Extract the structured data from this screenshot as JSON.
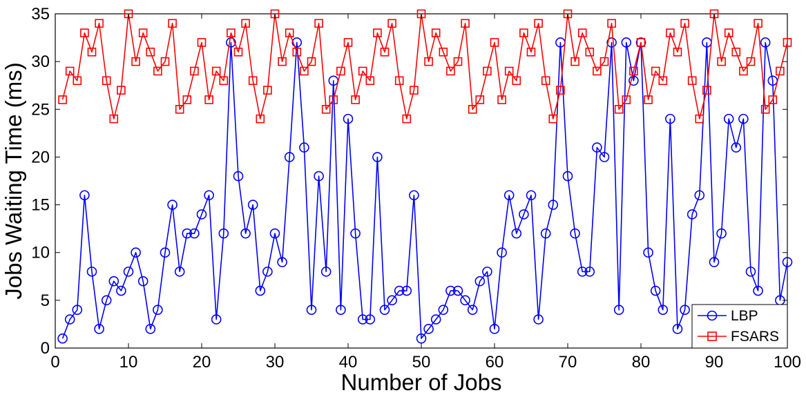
{
  "chart_data": {
    "type": "line",
    "xlabel": "Number of Jobs",
    "ylabel": "Jobs Waiting Time (ms)",
    "xlim": [
      0,
      100
    ],
    "ylim": [
      0,
      35
    ],
    "xticks": [
      0,
      10,
      20,
      30,
      40,
      50,
      60,
      70,
      80,
      90,
      100
    ],
    "yticks": [
      0,
      5,
      10,
      15,
      20,
      25,
      30,
      35
    ],
    "grid": false,
    "legend_position": "bottom-right",
    "x": [
      1,
      2,
      3,
      4,
      5,
      6,
      7,
      8,
      9,
      10,
      11,
      12,
      13,
      14,
      15,
      16,
      17,
      18,
      19,
      20,
      21,
      22,
      23,
      24,
      25,
      26,
      27,
      28,
      29,
      30,
      31,
      32,
      33,
      34,
      35,
      36,
      37,
      38,
      39,
      40,
      41,
      42,
      43,
      44,
      45,
      46,
      47,
      48,
      49,
      50,
      51,
      52,
      53,
      54,
      55,
      56,
      57,
      58,
      59,
      60,
      61,
      62,
      63,
      64,
      65,
      66,
      67,
      68,
      69,
      70,
      71,
      72,
      73,
      74,
      75,
      76,
      77,
      78,
      79,
      80,
      81,
      82,
      83,
      84,
      85,
      86,
      87,
      88,
      89,
      90,
      91,
      92,
      93,
      94,
      95,
      96,
      97,
      98,
      99,
      100
    ],
    "series": [
      {
        "name": "LBP",
        "color": "#0000ff",
        "marker": "circle",
        "values": [
          1,
          3,
          4,
          16,
          8,
          2,
          5,
          7,
          6,
          8,
          10,
          7,
          2,
          4,
          10,
          15,
          8,
          12,
          12,
          14,
          16,
          3,
          12,
          32,
          18,
          12,
          15,
          6,
          8,
          12,
          9,
          20,
          32,
          21,
          4,
          18,
          8,
          28,
          4,
          24,
          12,
          3,
          3,
          20,
          4,
          5,
          6,
          6,
          16,
          1,
          2,
          3,
          4,
          6,
          6,
          5,
          4,
          7,
          8,
          2,
          10,
          16,
          12,
          14,
          16,
          3,
          12,
          15,
          32,
          18,
          12,
          8,
          8,
          21,
          20,
          32,
          4,
          32,
          28,
          32,
          10,
          6,
          4,
          24,
          2,
          4,
          14,
          16,
          32,
          9,
          12,
          24,
          21,
          24,
          8,
          6,
          32,
          28,
          5,
          9
        ]
      },
      {
        "name": "FSARS",
        "color": "#ff0000",
        "marker": "square",
        "values": [
          26,
          29,
          28,
          33,
          31,
          34,
          28,
          24,
          27,
          35,
          30,
          33,
          31,
          29,
          30,
          34,
          25,
          26,
          29,
          32,
          26,
          29,
          28,
          33,
          31,
          34,
          28,
          24,
          27,
          35,
          30,
          33,
          31,
          29,
          30,
          34,
          25,
          26,
          29,
          32,
          26,
          29,
          28,
          33,
          31,
          34,
          28,
          24,
          27,
          35,
          30,
          33,
          31,
          29,
          30,
          34,
          25,
          26,
          29,
          32,
          26,
          29,
          28,
          33,
          31,
          34,
          28,
          24,
          27,
          35,
          30,
          33,
          31,
          29,
          30,
          34,
          25,
          26,
          29,
          32,
          26,
          29,
          28,
          33,
          31,
          34,
          28,
          24,
          27,
          35,
          30,
          33,
          31,
          29,
          30,
          34,
          25,
          26,
          29,
          32
        ]
      }
    ]
  }
}
